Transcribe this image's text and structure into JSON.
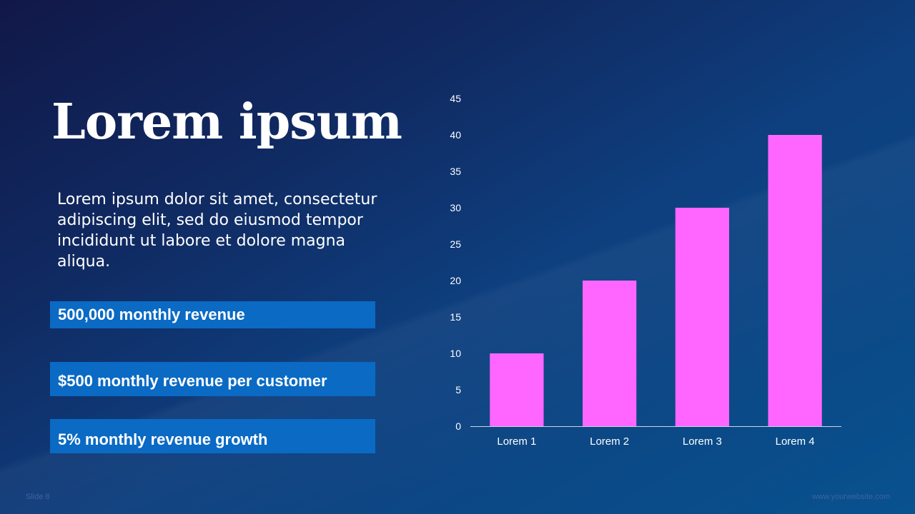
{
  "slide": {
    "title": "Lorem ipsum",
    "body": "Lorem ipsum dolor sit amet, consectetur adipiscing elit, sed do eiusmod tempor incididunt ut labore et dolore magna aliqua.",
    "stats": [
      "500,000 monthly revenue",
      "$500 monthly revenue per customer",
      "5% monthly revenue growth"
    ],
    "footer_left": "Slide 8",
    "footer_right": "www.yourwebsite.com"
  },
  "colors": {
    "bar": "#ff66ff",
    "stat_box": "#0a6ac4",
    "text": "#ffffff"
  },
  "chart_data": {
    "type": "bar",
    "categories": [
      "Lorem 1",
      "Lorem 2",
      "Lorem 3",
      "Lorem 4"
    ],
    "values": [
      10,
      20,
      30,
      40
    ],
    "ylim": [
      0,
      45
    ],
    "yticks": [
      0,
      5,
      10,
      15,
      20,
      25,
      30,
      35,
      40,
      45
    ],
    "title": "",
    "xlabel": "",
    "ylabel": "",
    "grid": false,
    "legend": "none"
  }
}
